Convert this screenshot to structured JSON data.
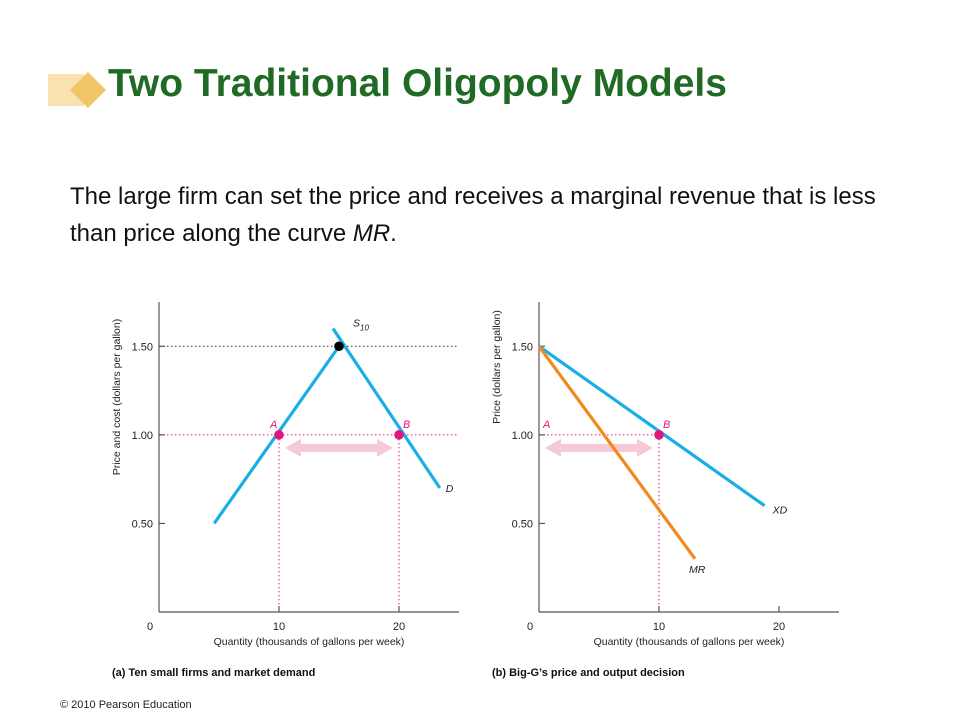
{
  "slide": {
    "title": "Two Traditional Oligopoly Models",
    "body_text": "The large firm can set the price and receives a marginal revenue that is less than price along the curve ",
    "body_emphasis": "MR",
    "body_end": ".",
    "copyright": "© 2010 Pearson Education"
  },
  "colors": {
    "title": "#1f6a24",
    "supply_demand": "#1aaee6",
    "marginal_revenue": "#f08a1c",
    "points": "#e2157e",
    "equilibrium_point": "#000000",
    "arrow": "#f6c9d6",
    "guides": "#e2157e",
    "title_deco": "#f7e2b0"
  },
  "chart_data": [
    {
      "type": "line",
      "caption": "(a) Ten small firms and market demand",
      "xlabel": "Quantity (thousands of gallons per week)",
      "ylabel": "Price and cost (dollars per gallon)",
      "origin_label": "0",
      "xlim": [
        0,
        25
      ],
      "ylim": [
        0,
        1.75
      ],
      "xticks": [
        10,
        20
      ],
      "xtick_labels": [
        "10",
        "20"
      ],
      "yticks": [
        0.5,
        1.0,
        1.5
      ],
      "ytick_labels": [
        "0.50",
        "1.00",
        "1.50"
      ],
      "series": [
        {
          "name": "S10",
          "label_main": "S",
          "label_sub": "10",
          "role": "supply",
          "x": [
            4.6,
            15,
            14.9
          ],
          "y": [
            0.5,
            1.5,
            1.5
          ]
        },
        {
          "name": "D",
          "label_main": "D",
          "label_sub": "",
          "role": "demand",
          "x": [
            14.5,
            23.4
          ],
          "y": [
            1.6,
            0.7
          ]
        }
      ],
      "points": [
        {
          "label": "A",
          "x": 10,
          "y": 1.0
        },
        {
          "label": "B",
          "x": 20,
          "y": 1.0
        },
        {
          "label": "",
          "x": 15,
          "y": 1.5
        }
      ],
      "arrow": {
        "from": 10,
        "to": 20,
        "y": 1.0
      },
      "dotted_guides": [
        {
          "kind": "h",
          "y": 1.5,
          "x_to": 25
        },
        {
          "kind": "h",
          "y": 1.0,
          "x_to": 25
        },
        {
          "kind": "v",
          "x": 10,
          "y_to": 1.0
        },
        {
          "kind": "v",
          "x": 20,
          "y_to": 1.0
        }
      ]
    },
    {
      "type": "line",
      "caption": "(b) Big-G’s price and output decision",
      "xlabel": "Quantity (thousands of gallons per week)",
      "ylabel": "Price (dollars per gallon)",
      "origin_label": "0",
      "xlim": [
        0,
        25
      ],
      "ylim": [
        0,
        1.75
      ],
      "xticks": [
        10,
        20
      ],
      "xtick_labels": [
        "10",
        "20"
      ],
      "yticks": [
        0.5,
        1.0,
        1.5
      ],
      "ytick_labels": [
        "0.50",
        "1.00",
        "1.50"
      ],
      "series": [
        {
          "name": "XD",
          "label_main": "XD",
          "label_sub": "",
          "role": "demand",
          "x": [
            0,
            18.8
          ],
          "y": [
            1.5,
            0.6
          ]
        },
        {
          "name": "MR",
          "label_main": "MR",
          "label_sub": "",
          "role": "marginal_revenue",
          "x": [
            0,
            13
          ],
          "y": [
            1.5,
            0.3
          ]
        }
      ],
      "points": [
        {
          "label": "B",
          "x": 10,
          "y": 1.0
        }
      ],
      "arrow": {
        "from": 0,
        "to": 10,
        "y": 1.0,
        "label_at_start": "A"
      },
      "dotted_guides": [
        {
          "kind": "h",
          "y": 1.0,
          "x_to": 10
        },
        {
          "kind": "v",
          "x": 10,
          "y_to": 1.0
        }
      ]
    }
  ]
}
